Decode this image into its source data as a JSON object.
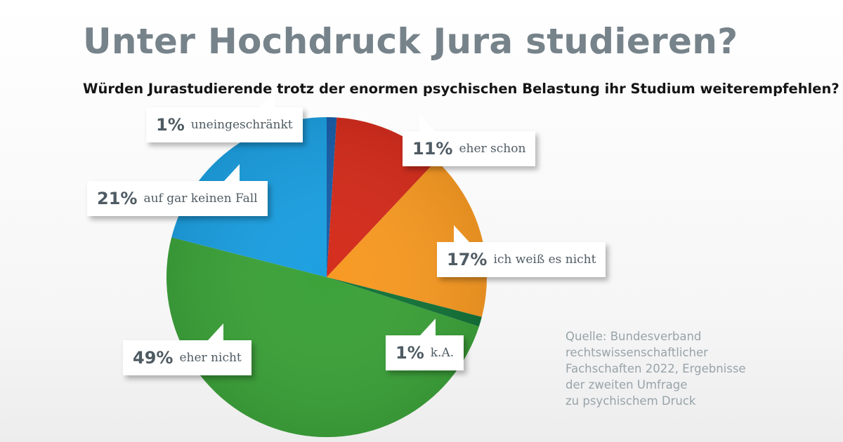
{
  "title": "Unter Hochdruck Jura studieren?",
  "subtitle": "Würden Jurastudierende trotz der enormen psychischen Belastung ihr Studium weiterempfehlen?",
  "source": "Quelle: Bundesverband\nrechtswissenschaftlicher\nFachschaften 2022, Ergebnisse\nder zweiten Umfrage\nzu psychischem Druck",
  "chart_data": {
    "type": "pie",
    "title": "Unter Hochdruck Jura studieren?",
    "subtitle": "Würden Jurastudierende trotz der enormen psychischen Belastung ihr Studium weiterempfehlen?",
    "slices": [
      {
        "label": "uneingeschränkt",
        "value": 1,
        "value_label": "1%",
        "color": "#1a5ea8"
      },
      {
        "label": "eher schon",
        "value": 11,
        "value_label": "11%",
        "color": "#d42d1d"
      },
      {
        "label": "ich weiß es nicht",
        "value": 17,
        "value_label": "17%",
        "color": "#f79a24"
      },
      {
        "label": "k.A.",
        "value": 1,
        "value_label": "1%",
        "color": "#15733a"
      },
      {
        "label": "eher nicht",
        "value": 49,
        "value_label": "49%",
        "color": "#3da23a"
      },
      {
        "label": "auf gar keinen Fall",
        "value": 21,
        "value_label": "21%",
        "color": "#1d9fe0"
      }
    ],
    "start": "top",
    "direction": "clockwise"
  }
}
